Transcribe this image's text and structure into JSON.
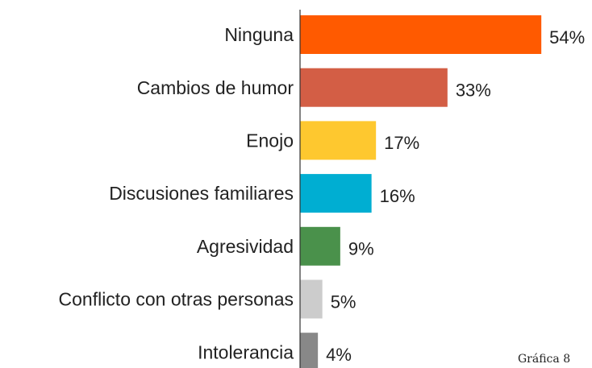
{
  "chart_data": {
    "type": "bar",
    "orientation": "horizontal",
    "categories": [
      "Ninguna",
      "Cambios de humor",
      "Enojo",
      "Discusiones familiares",
      "Agresividad",
      "Conflicto con otras personas",
      "Intolerancia"
    ],
    "values": [
      54,
      33,
      17,
      16,
      9,
      5,
      4
    ],
    "value_labels": [
      "54%",
      "33%",
      "17%",
      "16%",
      "9%",
      "5%",
      "4%"
    ],
    "colors": [
      "#ff5a00",
      "#d35e45",
      "#fec82f",
      "#00aed2",
      "#4a914b",
      "#cccccc",
      "#888888"
    ],
    "annotation": "Gráfica 8"
  }
}
